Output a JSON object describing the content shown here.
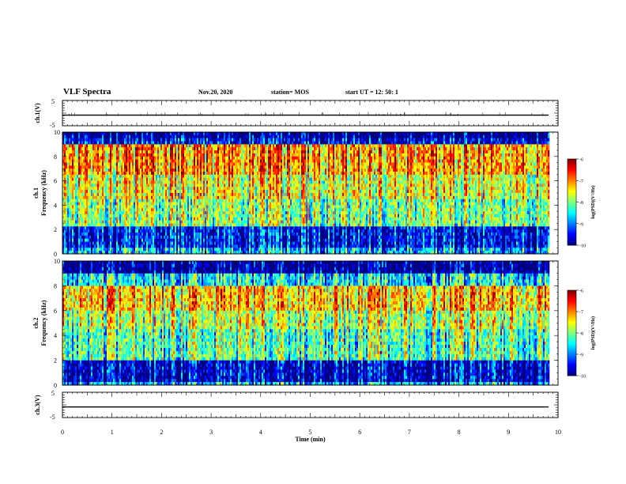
{
  "header": {
    "title": "VLF Spectra",
    "date": "Nov.20, 2020",
    "station": "station= MOS",
    "start": "start  UT =   12: 50: 1"
  },
  "chart_data": [
    {
      "type": "line",
      "panel": "ch1-waveform",
      "ylabel": "ch.1(V)",
      "ylim": [
        -5,
        5
      ],
      "yticks": [
        "5",
        "-5"
      ],
      "xlim": [
        0,
        10
      ],
      "series": [
        {
          "values": [
            -0.8,
            -0.8
          ]
        }
      ]
    },
    {
      "type": "heatmap",
      "panel": "ch1-spectrogram",
      "ylabel_top": "ch.1",
      "ylabel": "Frequency (kHz)",
      "ylim": [
        0,
        10
      ],
      "yticks": [
        "0",
        "2",
        "4",
        "6",
        "8",
        "10"
      ],
      "xlim": [
        0,
        9.83
      ],
      "band_power": [
        {
          "f0": 0,
          "f1": 0.5,
          "level": -8.8
        },
        {
          "f0": 0.5,
          "f1": 2.2,
          "level": -9.5
        },
        {
          "f0": 2.2,
          "f1": 4.5,
          "level": -8.0
        },
        {
          "f0": 4.5,
          "f1": 6.5,
          "level": -7.6
        },
        {
          "f0": 6.5,
          "f1": 9.0,
          "level": -7.1
        },
        {
          "f0": 9.0,
          "f1": 9.5,
          "level": -9.6
        },
        {
          "f0": 9.5,
          "f1": 10,
          "level": -10
        }
      ],
      "colorbar": {
        "label": "log(PSD)(V²/Hz)",
        "range": [
          -10,
          -6
        ],
        "ticks": [
          "-6",
          "-7",
          "-8",
          "-9",
          "-10"
        ]
      }
    },
    {
      "type": "heatmap",
      "panel": "ch2-spectrogram",
      "ylabel_top": "ch.2",
      "ylabel": "Frequency (kHz)",
      "ylim": [
        0,
        10
      ],
      "yticks": [
        "0",
        "2",
        "4",
        "6",
        "8",
        "10"
      ],
      "xlim": [
        0,
        9.83
      ],
      "band_power": [
        {
          "f0": 0,
          "f1": 0.3,
          "level": -8.8
        },
        {
          "f0": 0.3,
          "f1": 2.0,
          "level": -9.7
        },
        {
          "f0": 2.0,
          "f1": 4.5,
          "level": -8.2
        },
        {
          "f0": 4.5,
          "f1": 6.0,
          "level": -7.8
        },
        {
          "f0": 6.0,
          "f1": 8.0,
          "level": -7.3
        },
        {
          "f0": 8.0,
          "f1": 9.0,
          "level": -8.6
        },
        {
          "f0": 9.0,
          "f1": 10,
          "level": -10
        }
      ],
      "colorbar": {
        "label": "log(PSD)(V²/Hz)",
        "range": [
          -10,
          -6
        ],
        "ticks": [
          "-6",
          "-7",
          "-8",
          "-9",
          "-10"
        ]
      }
    },
    {
      "type": "line",
      "panel": "ch3-waveform",
      "ylabel": "ch.3(V)",
      "ylim": [
        -5,
        5
      ],
      "yticks": [
        "5",
        "-5"
      ],
      "xlim": [
        0,
        10
      ],
      "series": [
        {
          "values": [
            -0.8,
            -0.8
          ]
        }
      ]
    }
  ],
  "xaxis": {
    "label": "Time (min)",
    "ticks": [
      "0",
      "1",
      "2",
      "3",
      "4",
      "5",
      "6",
      "7",
      "8",
      "9",
      "10"
    ],
    "range": [
      0,
      10
    ]
  }
}
